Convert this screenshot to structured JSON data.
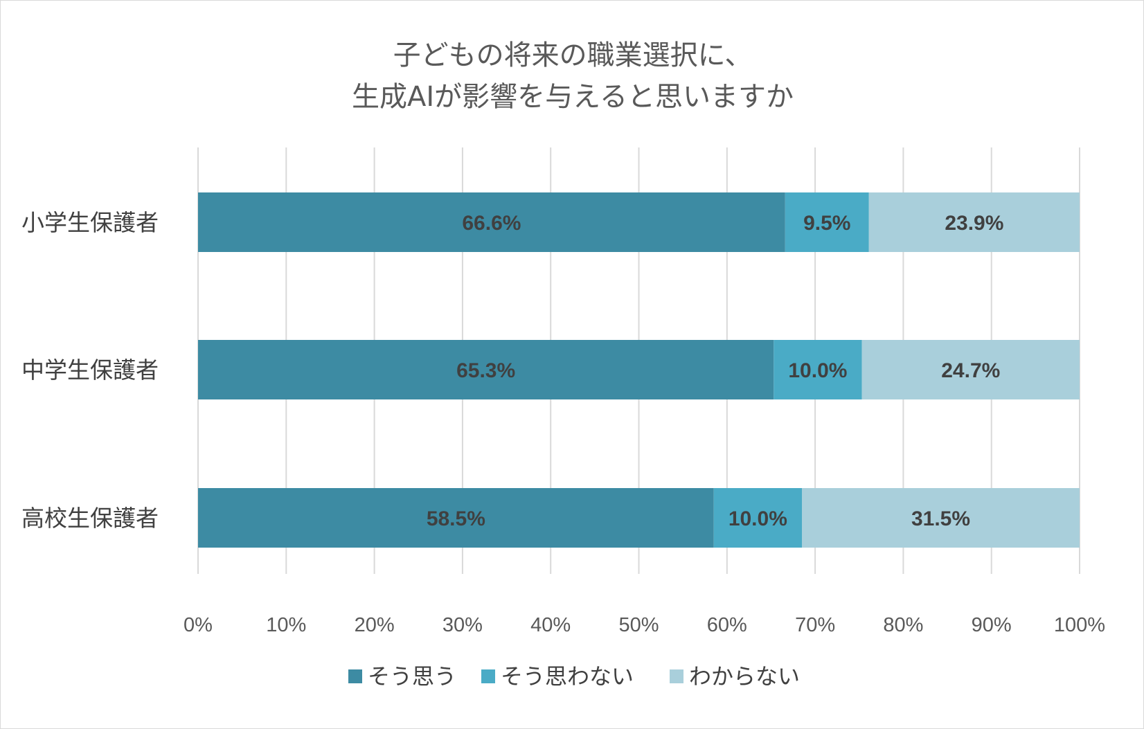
{
  "chart_data": {
    "type": "bar",
    "orientation": "horizontal",
    "stacked": "percent",
    "title_lines": [
      "子どもの将来の職業選択に、",
      "生成AIが影響を与えると思いますか"
    ],
    "categories": [
      "小学生保護者",
      "中学生保護者",
      "高校生保護者"
    ],
    "series": [
      {
        "name": "そう思う",
        "color": "#3d8ba3",
        "values": [
          66.6,
          65.3,
          58.5
        ],
        "labels": [
          "66.6%",
          "65.3%",
          "58.5%"
        ]
      },
      {
        "name": "そう思わない",
        "color": "#4aabc6",
        "values": [
          9.5,
          10.0,
          10.0
        ],
        "labels": [
          "9.5%",
          "10.0%",
          "10.0%"
        ]
      },
      {
        "name": "わからない",
        "color": "#a9cfdb",
        "values": [
          23.9,
          24.7,
          31.5
        ],
        "labels": [
          "23.9%",
          "24.7%",
          "31.5%"
        ]
      }
    ],
    "xlim": [
      0,
      100
    ],
    "xticks": [
      0,
      10,
      20,
      30,
      40,
      50,
      60,
      70,
      80,
      90,
      100
    ],
    "xtick_labels": [
      "0%",
      "10%",
      "20%",
      "30%",
      "40%",
      "50%",
      "60%",
      "70%",
      "80%",
      "90%",
      "100%"
    ],
    "grid": true,
    "gridline_color": "#d9d9d9",
    "legend_position": "bottom"
  }
}
